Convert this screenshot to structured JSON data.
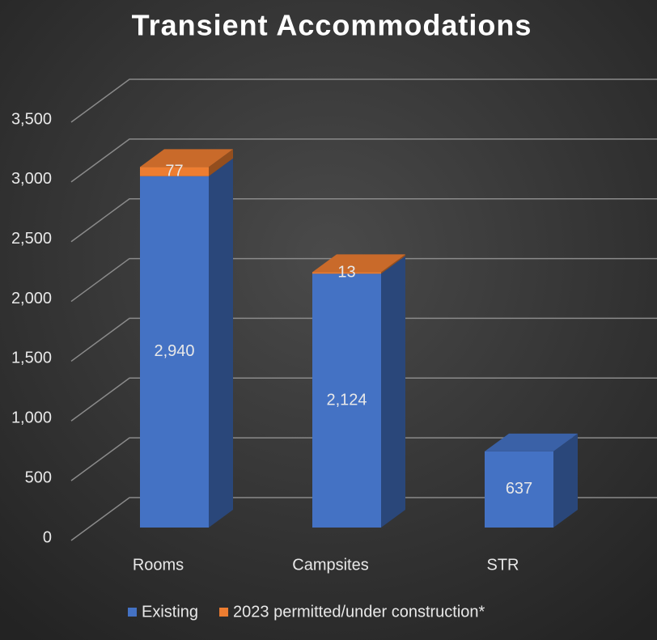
{
  "chart_data": {
    "type": "bar3d_stacked",
    "title": "Transient Accommodations",
    "categories": [
      "Rooms",
      "Campsites",
      "STR"
    ],
    "series": [
      {
        "name": "Existing",
        "color": "#4472c4",
        "values": [
          2940,
          2124,
          637
        ],
        "value_labels": [
          "2,940",
          "2,124",
          "637"
        ]
      },
      {
        "name": "2023 permitted/under construction*",
        "color": "#ed7d31",
        "values": [
          77,
          13,
          null
        ]
      }
    ],
    "ylim": [
      0,
      3500
    ],
    "yticks": [
      0,
      500,
      {
        "value": 1000,
        "label": "1,000"
      },
      {
        "value": 1500,
        "label": "1,500"
      },
      {
        "value": 2000,
        "label": "2,000"
      },
      {
        "value": 2500,
        "label": "2,500"
      },
      {
        "value": 3000,
        "label": "3,000"
      },
      {
        "value": 3500,
        "label": "3,500"
      }
    ],
    "grid": true,
    "legend": "bottom"
  }
}
